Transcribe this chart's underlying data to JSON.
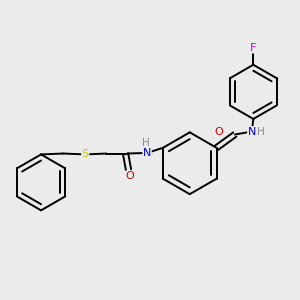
{
  "background_color": "#ebebeb",
  "bond_color": "#000000",
  "atom_colors": {
    "F": "#cc00cc",
    "N": "#0000cc",
    "O": "#cc0000",
    "S": "#cccc00",
    "H": "#888888",
    "C": "#000000"
  },
  "figsize": [
    3.0,
    3.0
  ],
  "dpi": 100
}
